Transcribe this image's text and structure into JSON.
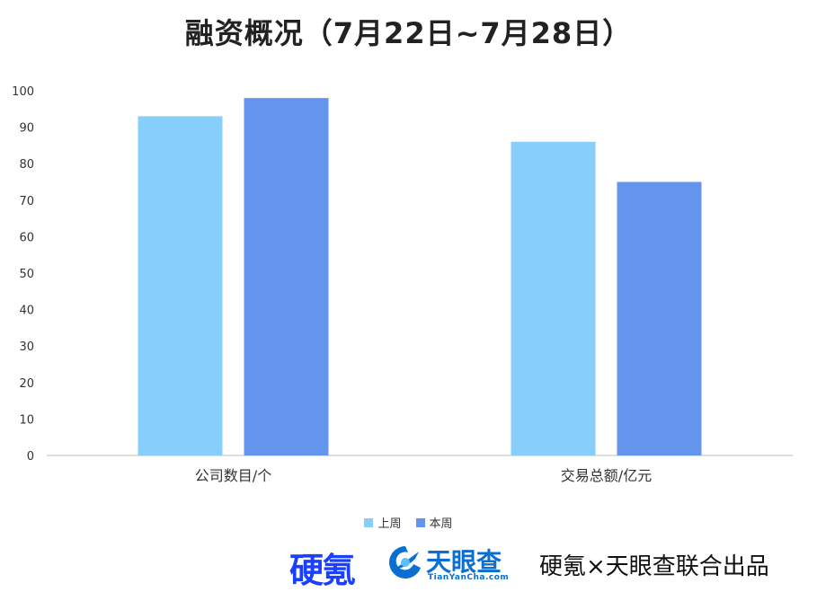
{
  "chart_data": {
    "type": "bar",
    "title": "融资概况（7月22日~7月28日）",
    "categories": [
      "公司数目/个",
      "交易总额/亿元"
    ],
    "series": [
      {
        "name": "上周",
        "color": "#87cefa",
        "values": [
          93,
          86
        ]
      },
      {
        "name": "本周",
        "color": "#6495ed",
        "values": [
          98,
          75
        ]
      }
    ],
    "ylim": [
      0,
      100
    ],
    "yticks": [
      0,
      10,
      20,
      30,
      40,
      50,
      60,
      70,
      80,
      90,
      100
    ],
    "grid": false,
    "legend_position": "bottom"
  },
  "footer": {
    "logo_yingke": "硬氪",
    "logo_tianyancha": "天眼查",
    "logo_tianyancha_url": "TianYanCha.com",
    "note": "硬氪×天眼查联合出品"
  }
}
